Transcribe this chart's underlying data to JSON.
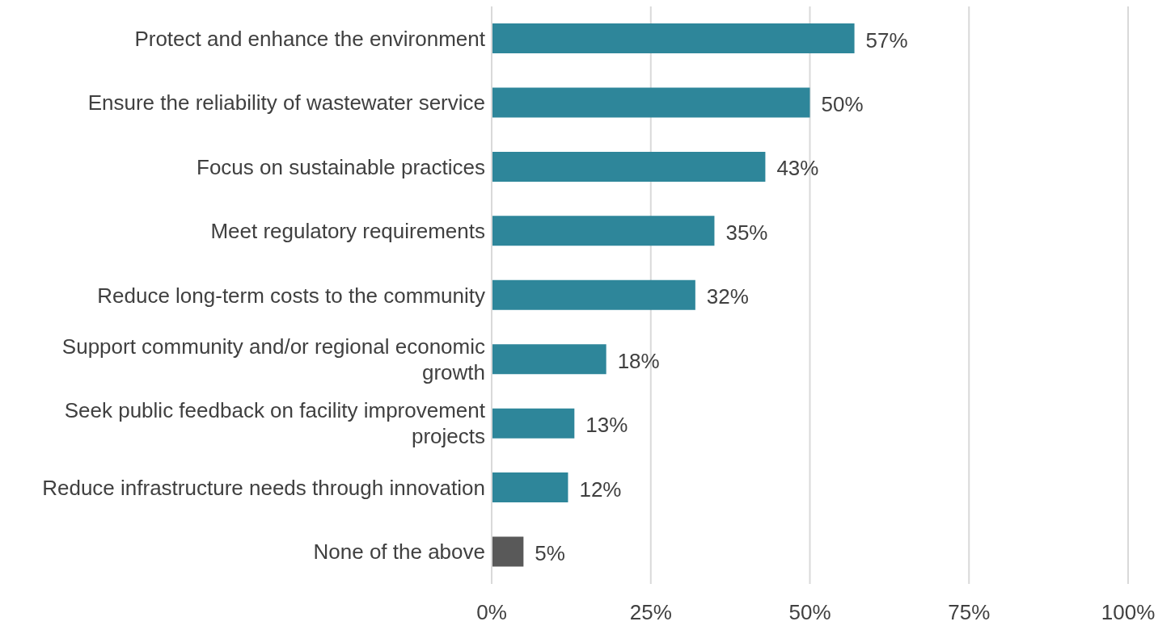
{
  "chart_data": {
    "type": "bar",
    "orientation": "horizontal",
    "categories": [
      "Protect and enhance the environment",
      "Ensure the reliability of wastewater service",
      "Focus on sustainable practices",
      "Meet regulatory requirements",
      "Reduce long-term costs to the community",
      "Support community and/or regional economic growth",
      "Seek public feedback on facility improvement projects",
      "Reduce infrastructure needs through innovation",
      "None of the above"
    ],
    "values": [
      57,
      50,
      43,
      35,
      32,
      18,
      13,
      12,
      5
    ],
    "colors": [
      "#2e869a",
      "#2e869a",
      "#2e869a",
      "#2e869a",
      "#2e869a",
      "#2e869a",
      "#2e869a",
      "#2e869a",
      "#595959"
    ],
    "value_labels": [
      "57%",
      "50%",
      "43%",
      "35%",
      "32%",
      "18%",
      "13%",
      "12%",
      "5%"
    ],
    "xlim": [
      0,
      100
    ],
    "xticks": [
      {
        "value": 0,
        "label": "0%"
      },
      {
        "value": 25,
        "label": "25%"
      },
      {
        "value": 50,
        "label": "50%"
      },
      {
        "value": 75,
        "label": "75%"
      },
      {
        "value": 100,
        "label": "100%"
      }
    ],
    "grid": "x"
  }
}
